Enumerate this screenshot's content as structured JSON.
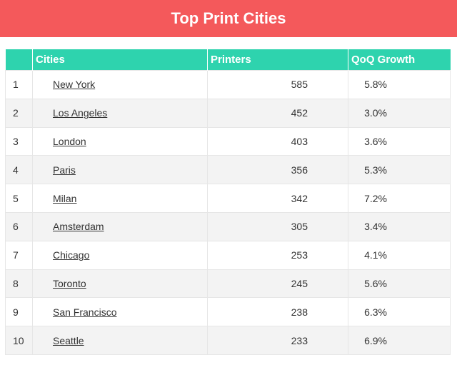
{
  "header": {
    "title": "Top Print Cities"
  },
  "table": {
    "columns": [
      "",
      "Cities",
      "Printers",
      "QoQ Growth"
    ],
    "rows": [
      {
        "rank": "1",
        "city": "New York",
        "printers": "585",
        "growth": "5.8%"
      },
      {
        "rank": "2",
        "city": "Los Angeles",
        "printers": "452",
        "growth": "3.0%"
      },
      {
        "rank": "3",
        "city": "London",
        "printers": "403",
        "growth": "3.6%"
      },
      {
        "rank": "4",
        "city": "Paris",
        "printers": "356",
        "growth": "5.3%"
      },
      {
        "rank": "5",
        "city": "Milan",
        "printers": "342",
        "growth": "7.2%"
      },
      {
        "rank": "6",
        "city": "Amsterdam",
        "printers": "305",
        "growth": "3.4%"
      },
      {
        "rank": "7",
        "city": "Chicago",
        "printers": "253",
        "growth": "4.1%"
      },
      {
        "rank": "8",
        "city": "Toronto",
        "printers": "245",
        "growth": "5.6%"
      },
      {
        "rank": "9",
        "city": "San Francisco",
        "printers": "238",
        "growth": "6.3%"
      },
      {
        "rank": "10",
        "city": "Seattle",
        "printers": "233",
        "growth": "6.9%"
      }
    ]
  },
  "colors": {
    "banner": "#f4595b",
    "header_row": "#2ed3ae",
    "row_alt": "#f3f3f3"
  }
}
